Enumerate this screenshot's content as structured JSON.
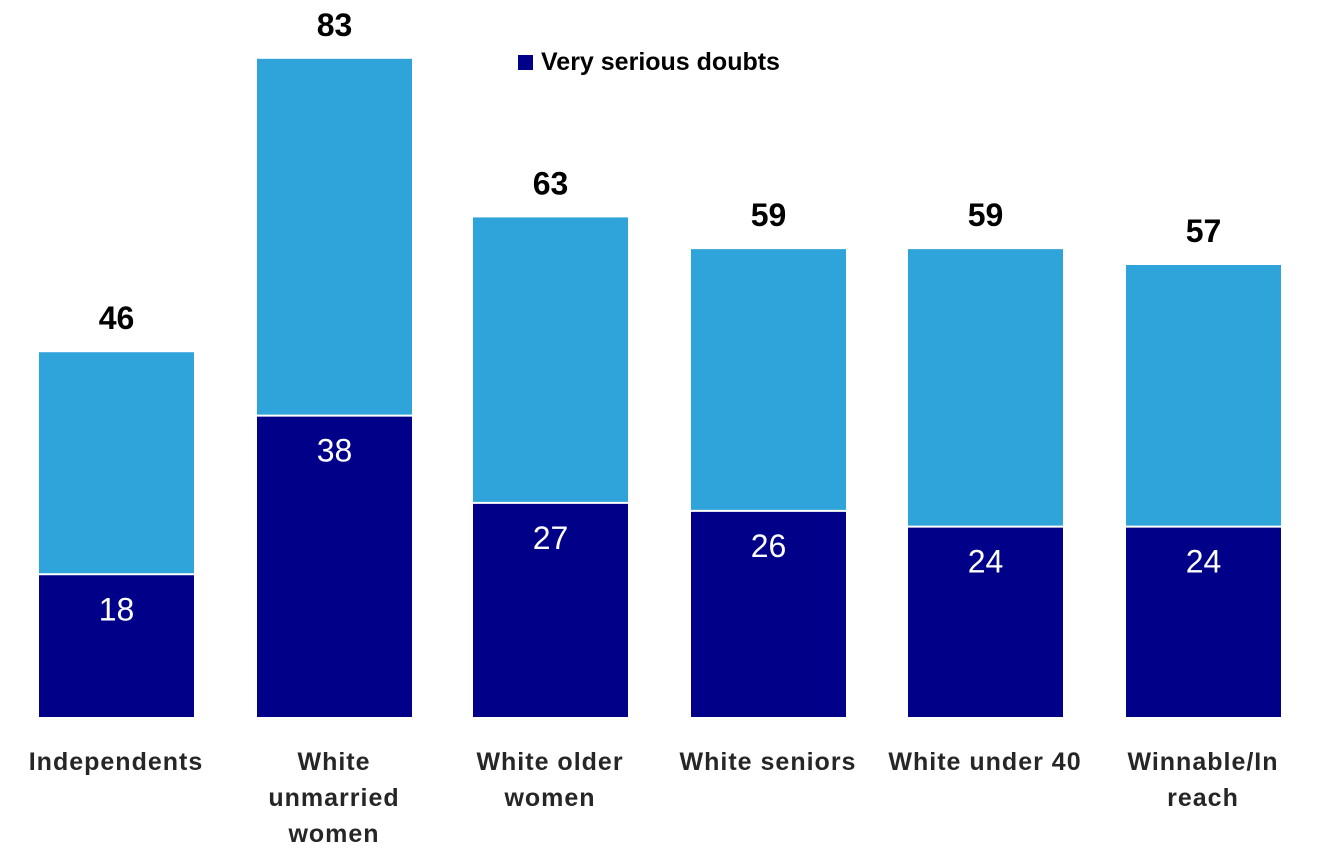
{
  "chart_data": {
    "type": "bar",
    "stacked": true,
    "categories": [
      "Independents",
      "White unmarried women",
      "White older women",
      "White seniors",
      "White under 40",
      "Winnable/In reach"
    ],
    "series": [
      {
        "name": "Very serious doubts",
        "values": [
          18,
          38,
          27,
          26,
          24,
          24
        ],
        "color": "#000088"
      },
      {
        "values": [
          28,
          45,
          36,
          33,
          35,
          33
        ],
        "color": "#2EA4DA"
      }
    ],
    "totals": [
      46,
      83,
      63,
      59,
      59,
      57
    ],
    "title": "",
    "xlabel": "",
    "ylabel": "",
    "ylim": [
      0,
      90
    ],
    "grid": false,
    "legend": {
      "position": "top-center",
      "entries": [
        "Very serious doubts"
      ]
    }
  }
}
